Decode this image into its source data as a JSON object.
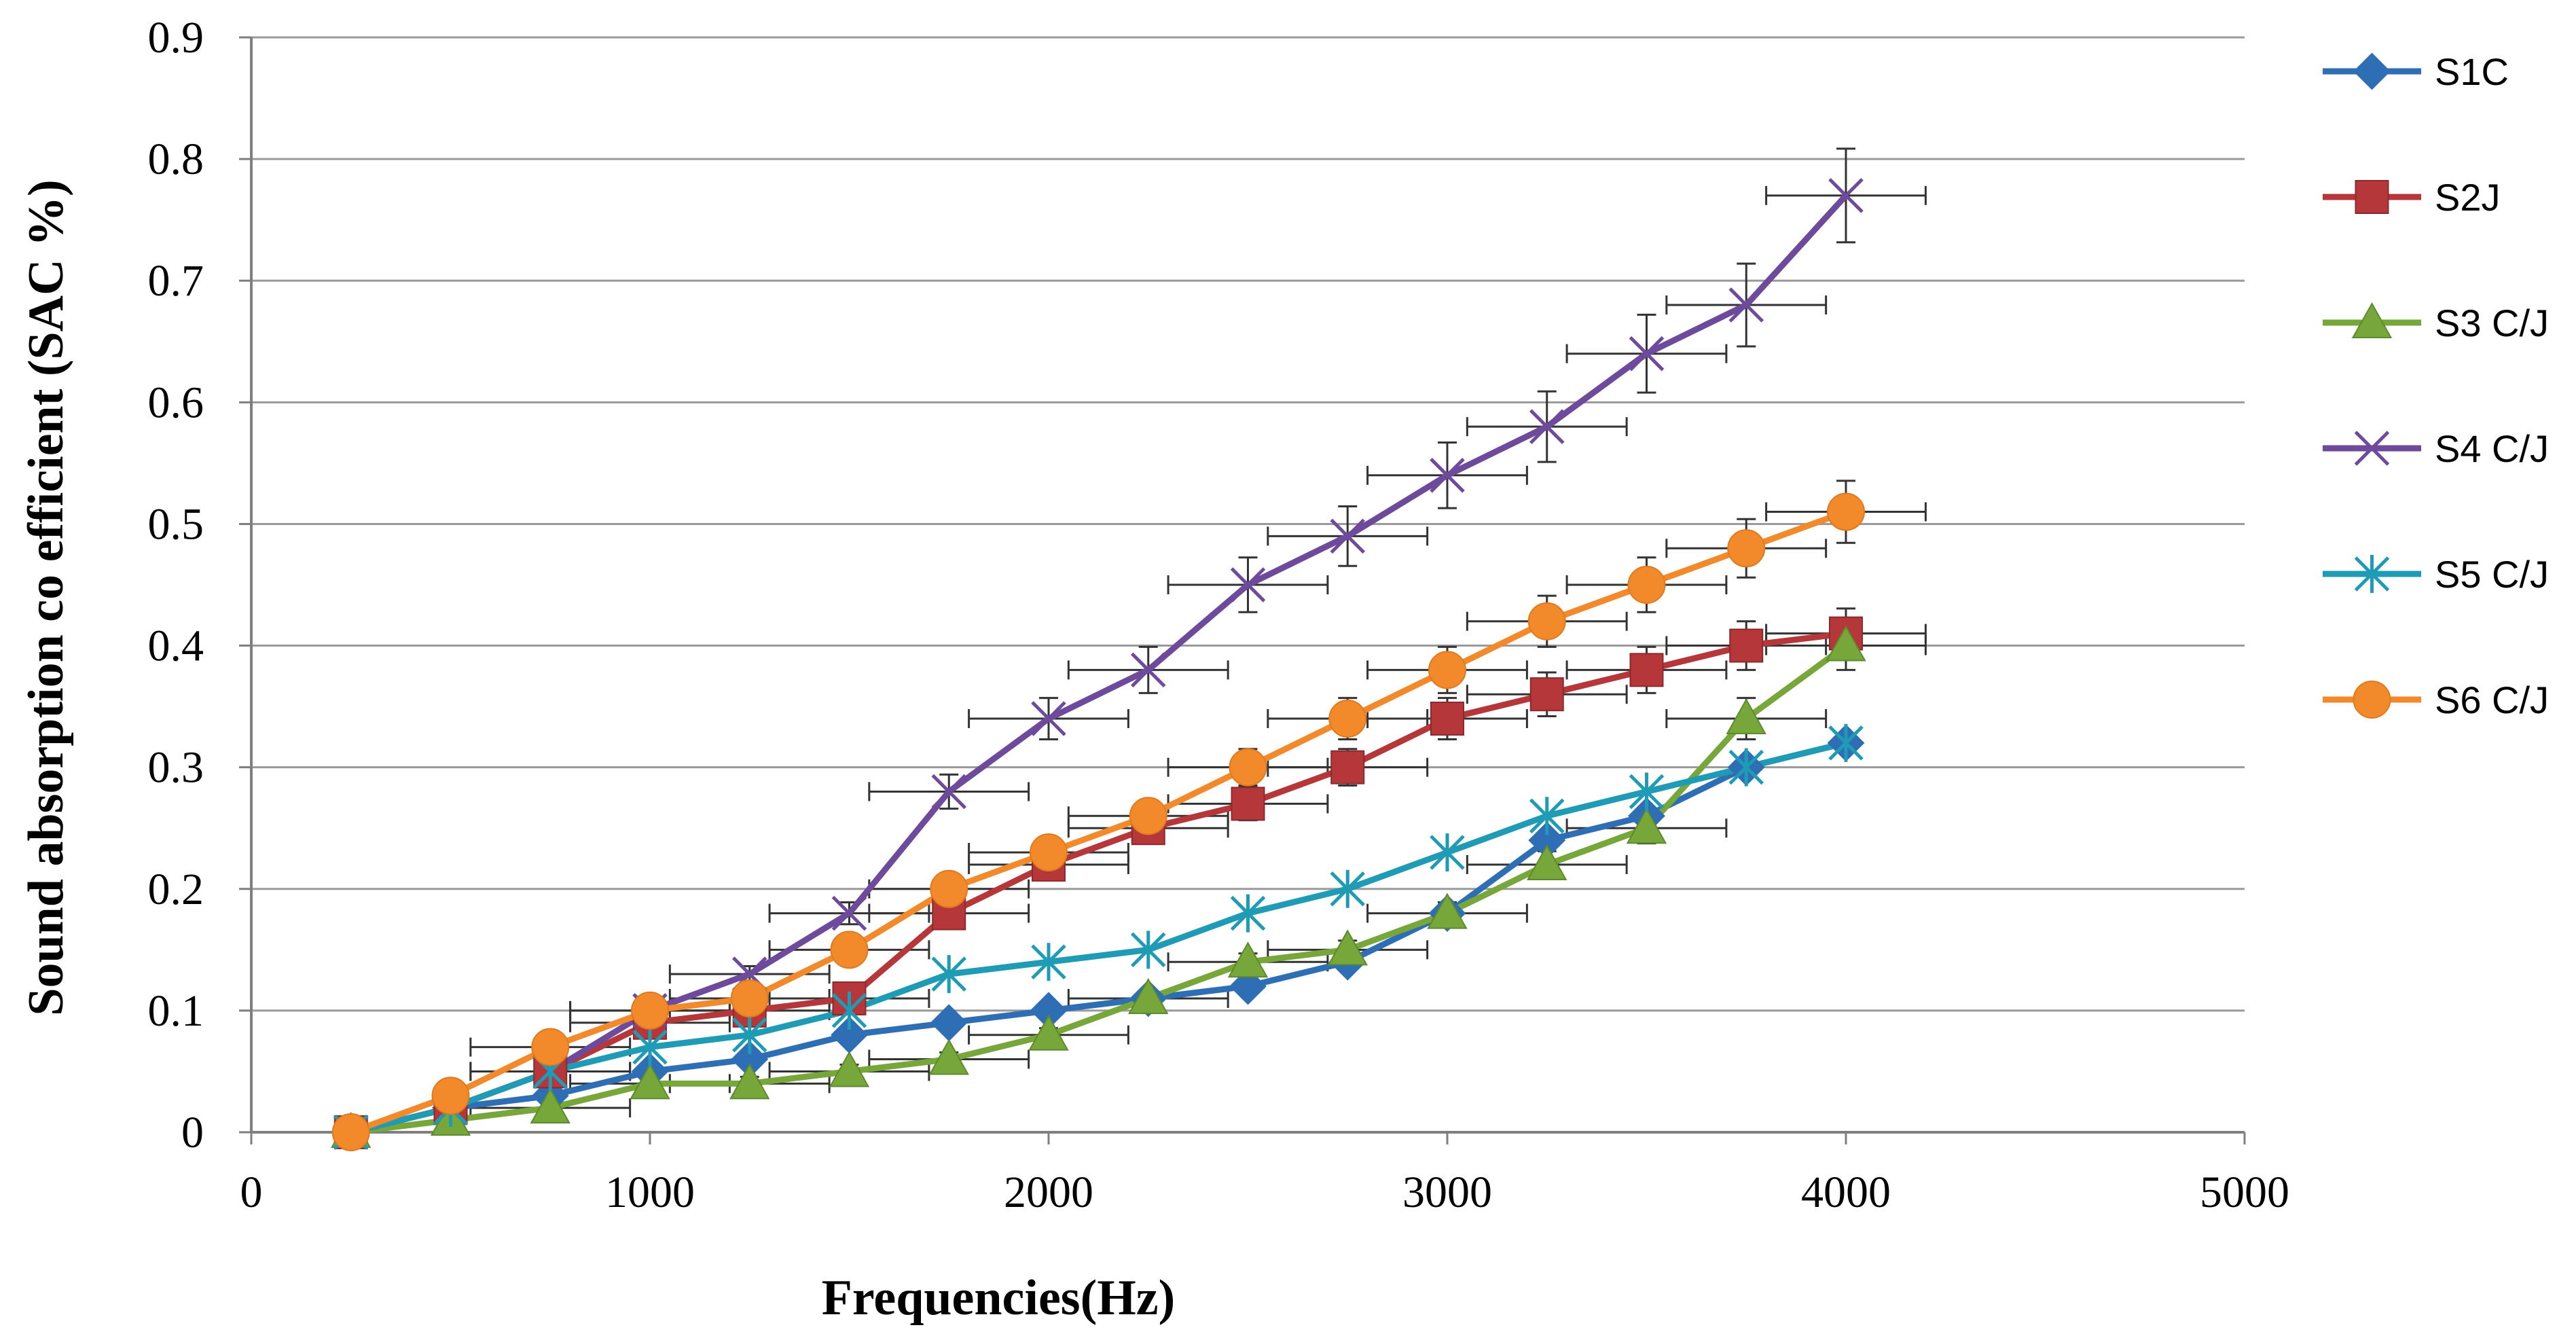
{
  "chart_data": {
    "type": "line",
    "title": "",
    "xlabel": "Frequencies(Hz)",
    "ylabel": "Sound absorption co efficient  (SAC %)",
    "xlim": [
      0,
      5000
    ],
    "ylim": [
      0,
      0.9
    ],
    "x_ticks": [
      "0",
      "1000",
      "2000",
      "3000",
      "4000",
      "5000"
    ],
    "y_ticks": [
      "0",
      "0.1",
      "0.2",
      "0.3",
      "0.4",
      "0.5",
      "0.6",
      "0.7",
      "0.8",
      "0.9"
    ],
    "grid": "horizontal",
    "legend_position": "right",
    "x": [
      250,
      500,
      750,
      1000,
      1250,
      1500,
      1750,
      2000,
      2250,
      2500,
      2750,
      3000,
      3250,
      3500,
      3750,
      4000
    ],
    "series": [
      {
        "name": "S1C",
        "color": "#2E6EB5",
        "marker": "diamond",
        "error_bars": false,
        "values": [
          0,
          0.02,
          0.03,
          0.05,
          0.06,
          0.08,
          0.09,
          0.1,
          0.11,
          0.12,
          0.14,
          0.18,
          0.24,
          0.26,
          0.3,
          0.32
        ]
      },
      {
        "name": "S2J",
        "color": "#B5373A",
        "marker": "square",
        "error_bars": true,
        "values": [
          0,
          0.02,
          0.05,
          0.09,
          0.1,
          0.11,
          0.18,
          0.22,
          0.25,
          0.27,
          0.3,
          0.34,
          0.36,
          0.38,
          0.4,
          0.41
        ]
      },
      {
        "name": "S3 C/J",
        "color": "#77A73B",
        "marker": "triangle",
        "error_bars": true,
        "values": [
          0,
          0.01,
          0.02,
          0.04,
          0.04,
          0.05,
          0.06,
          0.08,
          0.11,
          0.14,
          0.15,
          0.18,
          0.22,
          0.25,
          0.34,
          0.4
        ]
      },
      {
        "name": "S4 C/J",
        "color": "#6E4A9C",
        "marker": "x",
        "error_bars": true,
        "values": [
          0,
          0.02,
          0.05,
          0.1,
          0.13,
          0.18,
          0.28,
          0.34,
          0.38,
          0.45,
          0.49,
          0.54,
          0.58,
          0.64,
          0.68,
          0.77
        ]
      },
      {
        "name": "S5 C/J",
        "color": "#1F9BB5",
        "marker": "star",
        "error_bars": false,
        "values": [
          0,
          0.02,
          0.05,
          0.07,
          0.08,
          0.1,
          0.13,
          0.14,
          0.15,
          0.18,
          0.2,
          0.23,
          0.26,
          0.28,
          0.3,
          0.32
        ]
      },
      {
        "name": "S6 C/J",
        "color": "#F28A2B",
        "marker": "circle",
        "error_bars": true,
        "values": [
          0,
          0.03,
          0.07,
          0.1,
          0.11,
          0.15,
          0.2,
          0.23,
          0.26,
          0.3,
          0.34,
          0.38,
          0.42,
          0.45,
          0.48,
          0.51
        ]
      }
    ],
    "error_bar": {
      "x_half_width_hz": 200,
      "y_half_height_relative": 0.05
    }
  }
}
